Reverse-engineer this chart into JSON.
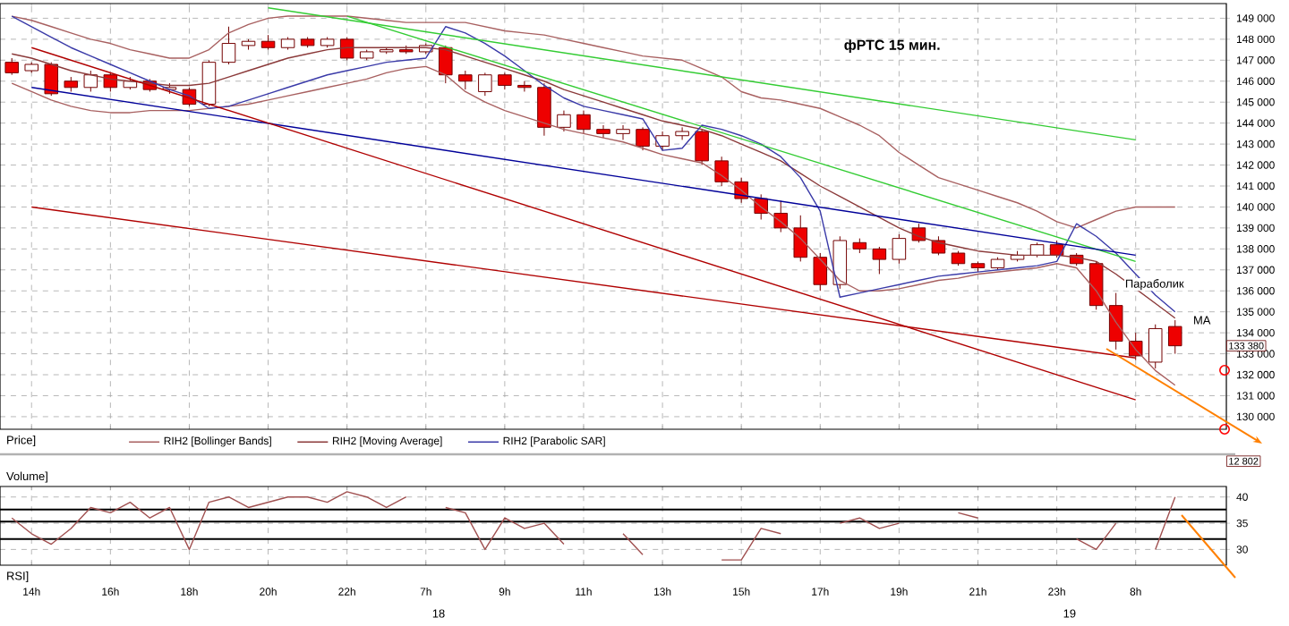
{
  "chart_data": [
    {
      "type": "candlestick",
      "title": "фРТС 15 мин.",
      "categories": [
        null,
        "14h",
        null,
        null,
        null,
        "16h",
        null,
        null,
        null,
        "18h",
        null,
        null,
        null,
        "20h",
        null,
        null,
        null,
        "22h",
        null,
        null,
        null,
        "7h",
        null,
        null,
        null,
        "9h",
        null,
        null,
        null,
        "11h",
        null,
        null,
        null,
        "13h",
        null,
        null,
        null,
        "15h",
        null,
        null,
        null,
        "17h",
        null,
        null,
        null,
        "19h",
        null,
        null,
        null,
        "21h",
        null,
        null,
        null,
        "23h",
        null,
        null,
        null,
        "8h",
        null,
        null
      ],
      "ohlc": [
        [
          146900,
          147100,
          146300,
          146400
        ],
        [
          146500,
          146900,
          146400,
          146800
        ],
        [
          146800,
          146900,
          145300,
          145400
        ],
        [
          146000,
          146200,
          145500,
          145700
        ],
        [
          145700,
          146500,
          145500,
          146300
        ],
        [
          146300,
          146400,
          145500,
          145700
        ],
        [
          145700,
          146200,
          145600,
          146000
        ],
        [
          146000,
          146100,
          145500,
          145600
        ],
        [
          145600,
          145900,
          145400,
          145700
        ],
        [
          145600,
          145700,
          144800,
          144900
        ],
        [
          144900,
          147000,
          144800,
          146900
        ],
        [
          146900,
          148600,
          146800,
          147800
        ],
        [
          147700,
          148000,
          147500,
          147900
        ],
        [
          147900,
          148200,
          147500,
          147600
        ],
        [
          147600,
          148100,
          147500,
          148000
        ],
        [
          148000,
          148100,
          147600,
          147700
        ],
        [
          147700,
          148100,
          147600,
          148000
        ],
        [
          148000,
          148100,
          147000,
          147100
        ],
        [
          147100,
          147500,
          147000,
          147400
        ],
        [
          147400,
          147600,
          147300,
          147500
        ],
        [
          147500,
          147700,
          147300,
          147400
        ],
        [
          147400,
          147800,
          147300,
          147700
        ],
        [
          147600,
          147700,
          145900,
          146300
        ],
        [
          146300,
          146500,
          145600,
          146000
        ],
        [
          145500,
          146400,
          145300,
          146300
        ],
        [
          146300,
          146400,
          145600,
          145800
        ],
        [
          145800,
          146000,
          145500,
          145700
        ],
        [
          145700,
          145900,
          143400,
          143800
        ],
        [
          143800,
          144600,
          143600,
          144400
        ],
        [
          144400,
          144600,
          143500,
          143700
        ],
        [
          143700,
          143900,
          143300,
          143500
        ],
        [
          143500,
          143900,
          143200,
          143700
        ],
        [
          143700,
          143800,
          142700,
          142900
        ],
        [
          142900,
          143600,
          142700,
          143400
        ],
        [
          143400,
          143800,
          143200,
          143600
        ],
        [
          143600,
          143700,
          142000,
          142200
        ],
        [
          142200,
          142400,
          141000,
          141200
        ],
        [
          141200,
          141400,
          140200,
          140400
        ],
        [
          140400,
          140600,
          139400,
          139700
        ],
        [
          139700,
          140300,
          138800,
          139000
        ],
        [
          139000,
          139600,
          137400,
          137600
        ],
        [
          137600,
          137800,
          136000,
          136300
        ],
        [
          136300,
          138600,
          136100,
          138400
        ],
        [
          138300,
          138500,
          137800,
          138000
        ],
        [
          138000,
          138100,
          136800,
          137500
        ],
        [
          137500,
          138700,
          137300,
          138500
        ],
        [
          139000,
          139200,
          138300,
          138400
        ],
        [
          138400,
          138600,
          137700,
          137800
        ],
        [
          137800,
          137900,
          137200,
          137300
        ],
        [
          137300,
          137400,
          136900,
          137100
        ],
        [
          137100,
          137600,
          137000,
          137500
        ],
        [
          137500,
          137900,
          137400,
          137700
        ],
        [
          137700,
          138300,
          137600,
          138200
        ],
        [
          138200,
          138400,
          137600,
          137700
        ],
        [
          137700,
          137800,
          137200,
          137300
        ],
        [
          137300,
          137400,
          135100,
          135300
        ],
        [
          135300,
          135900,
          133200,
          133600
        ],
        [
          133600,
          134000,
          132700,
          132900
        ],
        [
          132600,
          134400,
          132300,
          134200
        ],
        [
          134300,
          134600,
          133000,
          133380
        ]
      ],
      "colors": [
        "#ee0000",
        "#ffffff",
        "#ee0000",
        "#ee0000",
        "#ffffff",
        "#ee0000",
        "#ffffff",
        "#ee0000",
        "#ffffff",
        "#ee0000",
        "#ffffff",
        "#ffffff",
        "#ffffff",
        "#ee0000",
        "#ffffff",
        "#ee0000",
        "#ffffff",
        "#ee0000",
        "#ffffff",
        "#ffffff",
        "#ee0000",
        "#ffffff",
        "#ee0000",
        "#ee0000",
        "#ffffff",
        "#ee0000",
        "#ee0000",
        "#ee0000",
        "#ffffff",
        "#ee0000",
        "#ee0000",
        "#ffffff",
        "#ee0000",
        "#ffffff",
        "#ffffff",
        "#ee0000",
        "#ee0000",
        "#ee0000",
        "#ee0000",
        "#ee0000",
        "#ee0000",
        "#ee0000",
        "#ffffff",
        "#ee0000",
        "#ee0000",
        "#ffffff",
        "#ee0000",
        "#ee0000",
        "#ee0000",
        "#ee0000",
        "#ffffff",
        "#ffffff",
        "#ffffff",
        "#ee0000",
        "#ee0000",
        "#ee0000",
        "#ee0000",
        "#ee0000",
        "#ffffff",
        "#ee0000"
      ],
      "series": [
        {
          "name": "RIH2 [Bollinger Bands]",
          "type": "line",
          "color": "#a86060",
          "values": [
            149100,
            148900,
            148600,
            148300,
            148000,
            147800,
            147500,
            147300,
            147100,
            147100,
            147500,
            148300,
            148700,
            149000,
            149100,
            149100,
            149100,
            149100,
            149000,
            148900,
            148800,
            148800,
            148800,
            148800,
            148600,
            148400,
            148300,
            148200,
            148000,
            147800,
            147600,
            147400,
            147200,
            147100,
            147000,
            146600,
            146200,
            145500,
            145200,
            145100,
            144900,
            144700,
            144300,
            143900,
            143400,
            142600,
            142000,
            141400,
            141100,
            140800,
            140500,
            140200,
            139800,
            139300,
            139000,
            139400,
            139800,
            140000,
            140000,
            140000
          ]
        },
        {
          "type": "line",
          "color": "#a86060",
          "values": [
            145900,
            145500,
            145100,
            144800,
            144600,
            144500,
            144500,
            144600,
            144600,
            144600,
            144700,
            144800,
            144900,
            145100,
            145300,
            145500,
            145700,
            145900,
            146100,
            146400,
            146600,
            146700,
            146300,
            145500,
            145000,
            144600,
            144300,
            144000,
            143700,
            143500,
            143300,
            143100,
            142800,
            142500,
            142300,
            142100,
            141500,
            140800,
            140000,
            139300,
            138500,
            137500,
            136500,
            136000,
            136000,
            136100,
            136300,
            136500,
            136600,
            136800,
            136900,
            137000,
            137100,
            137300,
            137100,
            136000,
            134500,
            133200,
            132200,
            131500
          ]
        },
        {
          "name": "RIH2 [Moving Average]",
          "type": "line",
          "color": "#8b3a3a",
          "values": [
            147300,
            147100,
            146800,
            146500,
            146300,
            146100,
            146000,
            145900,
            145800,
            145800,
            145900,
            146200,
            146500,
            146800,
            147100,
            147300,
            147500,
            147600,
            147600,
            147600,
            147600,
            147600,
            147500,
            147200,
            146900,
            146600,
            146300,
            146000,
            145600,
            145300,
            145000,
            144700,
            144400,
            144100,
            143900,
            143700,
            143400,
            143000,
            142600,
            142200,
            141600,
            141000,
            140500,
            140000,
            139500,
            139000,
            138600,
            138300,
            138100,
            137900,
            137800,
            137700,
            137700,
            137700,
            137600,
            137400,
            136800,
            136100,
            135400,
            134700
          ]
        },
        {
          "name": "RIH2 [Parabolic SAR]",
          "type": "line",
          "color": "#3a3aa8",
          "values": [
            149100,
            148600,
            148100,
            147600,
            147200,
            146800,
            146400,
            146000,
            145600,
            145300,
            144700,
            144800,
            145100,
            145400,
            145700,
            146000,
            146300,
            146500,
            146700,
            146900,
            147000,
            147100,
            148600,
            148300,
            147800,
            147200,
            146500,
            145800,
            145200,
            144800,
            144600,
            144400,
            144200,
            142700,
            142800,
            143900,
            143700,
            143400,
            143000,
            142400,
            141400,
            139800,
            135700,
            135900,
            136100,
            136300,
            136500,
            136700,
            136800,
            136900,
            137000,
            137100,
            137200,
            137400,
            139200,
            138600,
            137800,
            136800,
            135800,
            135000
          ]
        },
        {
          "type": "line",
          "color": "#33cc33",
          "x": [
            "20h",
            "8h"
          ],
          "values": [
            149500,
            143200
          ]
        },
        {
          "type": "line",
          "color": "#33cc33",
          "x": [
            "22h",
            "8h"
          ],
          "values": [
            149100,
            137400
          ]
        },
        {
          "type": "line",
          "color": "#000099",
          "x": [
            "14h",
            "8h"
          ],
          "values": [
            145700,
            137700
          ]
        },
        {
          "type": "line",
          "color": "#b00000",
          "x": [
            "14h",
            "8h"
          ],
          "values": [
            147600,
            130800
          ]
        },
        {
          "type": "line",
          "color": "#b00000",
          "x": [
            "14h",
            "8h"
          ],
          "values": [
            140000,
            132800
          ]
        }
      ],
      "ylim": [
        129400,
        149700
      ],
      "yticks": [
        {
          "value": 130000,
          "label": "130 000"
        },
        {
          "value": 131000,
          "label": "131 000"
        },
        {
          "value": 132000,
          "label": "132 000"
        },
        {
          "value": 133000,
          "label": "133 000"
        },
        {
          "value": 134000,
          "label": "134 000"
        },
        {
          "value": 135000,
          "label": "135 000"
        },
        {
          "value": 136000,
          "label": "136 000"
        },
        {
          "value": 137000,
          "label": "137 000"
        },
        {
          "value": 138000,
          "label": "138 000"
        },
        {
          "value": 139000,
          "label": "139 000"
        },
        {
          "value": 140000,
          "label": "140 000"
        },
        {
          "value": 141000,
          "label": "141 000"
        },
        {
          "value": 142000,
          "label": "142 000"
        },
        {
          "value": 143000,
          "label": "143 000"
        },
        {
          "value": 144000,
          "label": "144 000"
        },
        {
          "value": 145000,
          "label": "145 000"
        },
        {
          "value": 146000,
          "label": "146 000"
        },
        {
          "value": 147000,
          "label": "147 000"
        },
        {
          "value": 148000,
          "label": "148 000"
        },
        {
          "value": 149000,
          "label": "149 000"
        }
      ],
      "grid": true,
      "legend": "bottom",
      "tick_labels": "y",
      "annotations": [
        "Параболик",
        "MA",
        "Price]",
        "Volume]",
        "12 802",
        "133 380"
      ]
    },
    {
      "type": "line",
      "color": "#a05050",
      "categories": [
        null,
        "14h",
        null,
        null,
        null,
        "16h",
        null,
        null,
        null,
        "18h",
        null,
        null,
        null,
        "20h",
        null,
        null,
        null,
        "22h",
        null,
        null,
        null,
        "7h",
        null,
        null,
        null,
        "9h",
        null,
        null,
        null,
        "11h",
        null,
        null,
        null,
        "13h",
        null,
        null,
        null,
        "15h",
        null,
        null,
        null,
        "17h",
        null,
        null,
        null,
        "19h",
        null,
        null,
        null,
        "21h",
        null,
        null,
        null,
        "23h",
        null,
        null,
        null,
        "8h",
        null,
        null
      ],
      "values": [
        36,
        33,
        31,
        34,
        38,
        37,
        39,
        36,
        38,
        30,
        39,
        40,
        38,
        39,
        40,
        40,
        39,
        41,
        40,
        38,
        40,
        null,
        38,
        37,
        30,
        36,
        34,
        35,
        31,
        null,
        null,
        33,
        29,
        null,
        null,
        null,
        28,
        28,
        34,
        33,
        null,
        null,
        35,
        36,
        34,
        35,
        null,
        null,
        37,
        36,
        null,
        null,
        null,
        null,
        32,
        30,
        35,
        null,
        30,
        40
      ],
      "ylim": [
        27,
        42
      ],
      "yticks": [
        30,
        35,
        40
      ],
      "ref_lines": [
        {
          "axis": "y",
          "value": 37.6,
          "color": "#000000"
        },
        {
          "axis": "y",
          "value": 35.3,
          "color": "#000000"
        },
        {
          "axis": "y",
          "value": 32,
          "color": "#000000"
        }
      ],
      "grid": true,
      "annotations": [
        "RSI]",
        "18",
        "19"
      ]
    }
  ]
}
